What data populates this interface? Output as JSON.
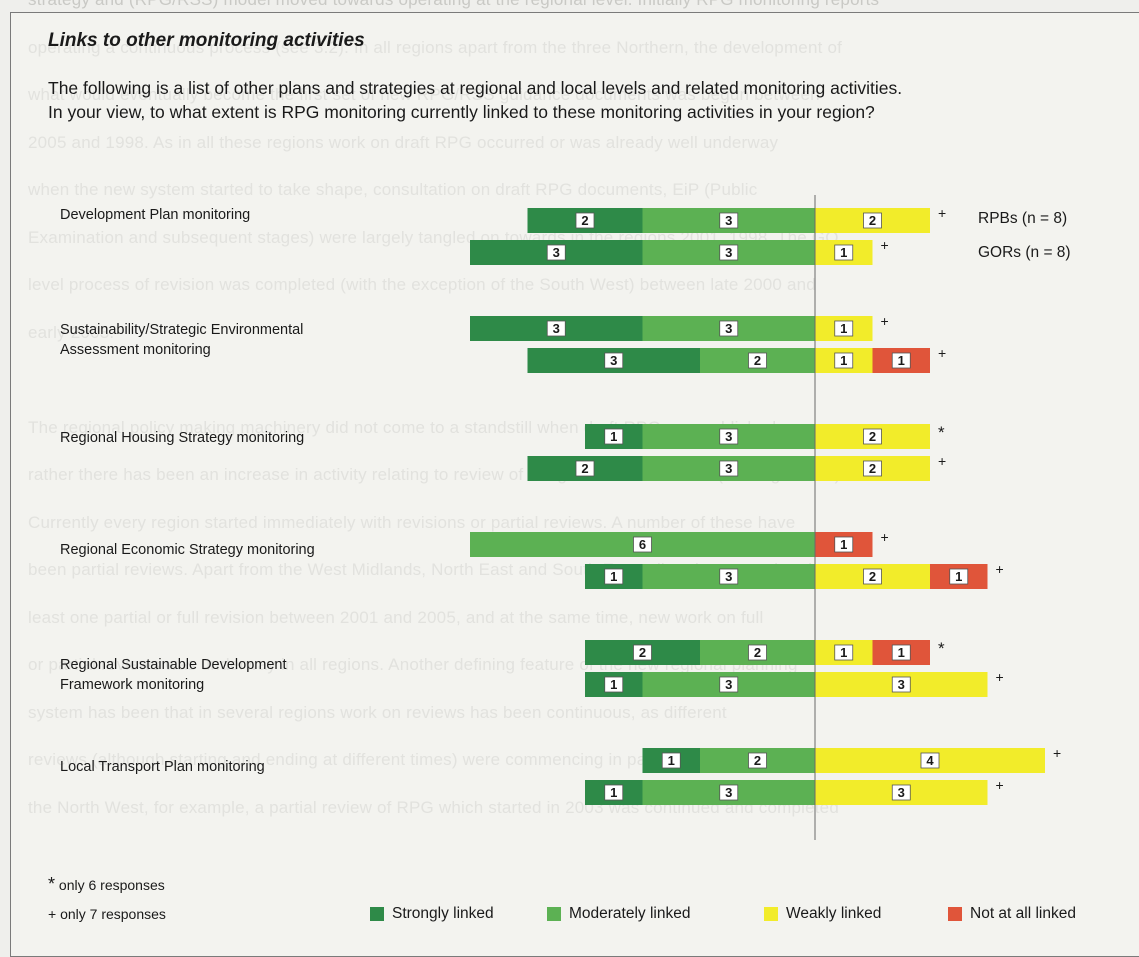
{
  "background_text": [
    "strategy and (RPG/RSS) model moved towards operating at the regional level. Initially RPG monitoring reports",
    "operating a continuous process (see 3.2). In all regions apart from the three Northern, the development of",
    "what would eventually become the first set of new RPG/RSS guidance documents was begun between",
    "2005 and 1998. As in all these regions work on draft RPG occurred or was already well underway",
    "when the new system started to take shape, consultation on draft RPG documents, EiP (Public",
    "Examination and subsequent stages) were largely tangled on towards in the regions 2001, 1998. The GO",
    "level process of revision was completed (with the exception of the South West) between late 2000 and",
    "early 2003.",
    "",
    "The regional policy making machinery did not come to a standstill when draft RPG was published;",
    "rather there has been an increase in activity relating to review of the guidance since then (see Figure 3.2).",
    "Currently every region started immediately with revisions or partial reviews. A number of these have",
    "been partial reviews. Apart from the West Midlands, North East and South East, all regions completed at",
    "least one partial or full revision between 2001 and 2005, and at the same time, new work on full",
    "or partial reviews was underway in all regions. Another defining feature of the new regional planning",
    "system has been that in several regions work on reviews has been continuous, as different",
    "reviews (although starting and ending at different times) were commencing in parallel at some stage. In",
    "the North West, for example, a partial review of RPG which started in 2003 was continued and completed"
  ],
  "panel": {
    "title": "Links to other monitoring activities",
    "intro_line1": "The following is a list of other plans and strategies at regional and local levels and related monitoring activities.",
    "intro_line2": "In your view, to what extent is RPG monitoring currently linked to these monitoring activities in your region?",
    "note_star_symbol": "*",
    "note_star_text": "only 6 responses",
    "note_plus_symbol": "+",
    "note_plus_text": "only 7 responses"
  },
  "colors": {
    "strongly": "#2e8a48",
    "moderately": "#5cb153",
    "weakly": "#f2ec2a",
    "not_at_all": "#e0553a"
  },
  "chart_data": {
    "type": "bar",
    "orientation": "horizontal-diverging",
    "categories": [
      "Development Plan monitoring",
      "Sustainability/Strategic Environmental Assessment monitoring",
      "Regional Housing Strategy monitoring",
      "Regional Economic Strategy monitoring",
      "Regional Sustainable Development Framework monitoring",
      "Local Transport Plan monitoring"
    ],
    "category_label_lines": [
      [
        "Development Plan monitoring"
      ],
      [
        "Sustainability/Strategic Environmental",
        "Assessment monitoring"
      ],
      [
        "Regional Housing Strategy monitoring"
      ],
      [
        "Regional Economic Strategy monitoring"
      ],
      [
        "Regional Sustainable Development",
        "Framework monitoring"
      ],
      [
        "Local Transport Plan monitoring"
      ]
    ],
    "groups": [
      "RPBs (n = 8)",
      "GORs (n = 8)"
    ],
    "series": [
      {
        "name": "Strongly linked",
        "key": "strongly",
        "rpb": [
          2,
          3,
          1,
          0,
          2,
          1
        ],
        "gor": [
          3,
          3,
          2,
          1,
          1,
          1
        ]
      },
      {
        "name": "Moderately linked",
        "key": "moderately",
        "rpb": [
          3,
          3,
          3,
          6,
          2,
          2
        ],
        "gor": [
          3,
          2,
          3,
          3,
          3,
          3
        ]
      },
      {
        "name": "Weakly linked",
        "key": "weakly",
        "rpb": [
          2,
          1,
          2,
          0,
          1,
          4
        ],
        "gor": [
          1,
          1,
          2,
          2,
          3,
          3
        ]
      },
      {
        "name": "Not at all linked",
        "key": "not_at_all",
        "rpb": [
          0,
          0,
          0,
          1,
          1,
          0
        ],
        "gor": [
          0,
          1,
          0,
          1,
          0,
          0
        ]
      }
    ],
    "response_markers": {
      "rpb": [
        "+",
        "+",
        "*",
        "+",
        "*",
        "+"
      ],
      "gor": [
        "+",
        "+",
        "+",
        "+",
        "+",
        "+"
      ]
    },
    "legend_placement": "bottom",
    "grid": false
  }
}
